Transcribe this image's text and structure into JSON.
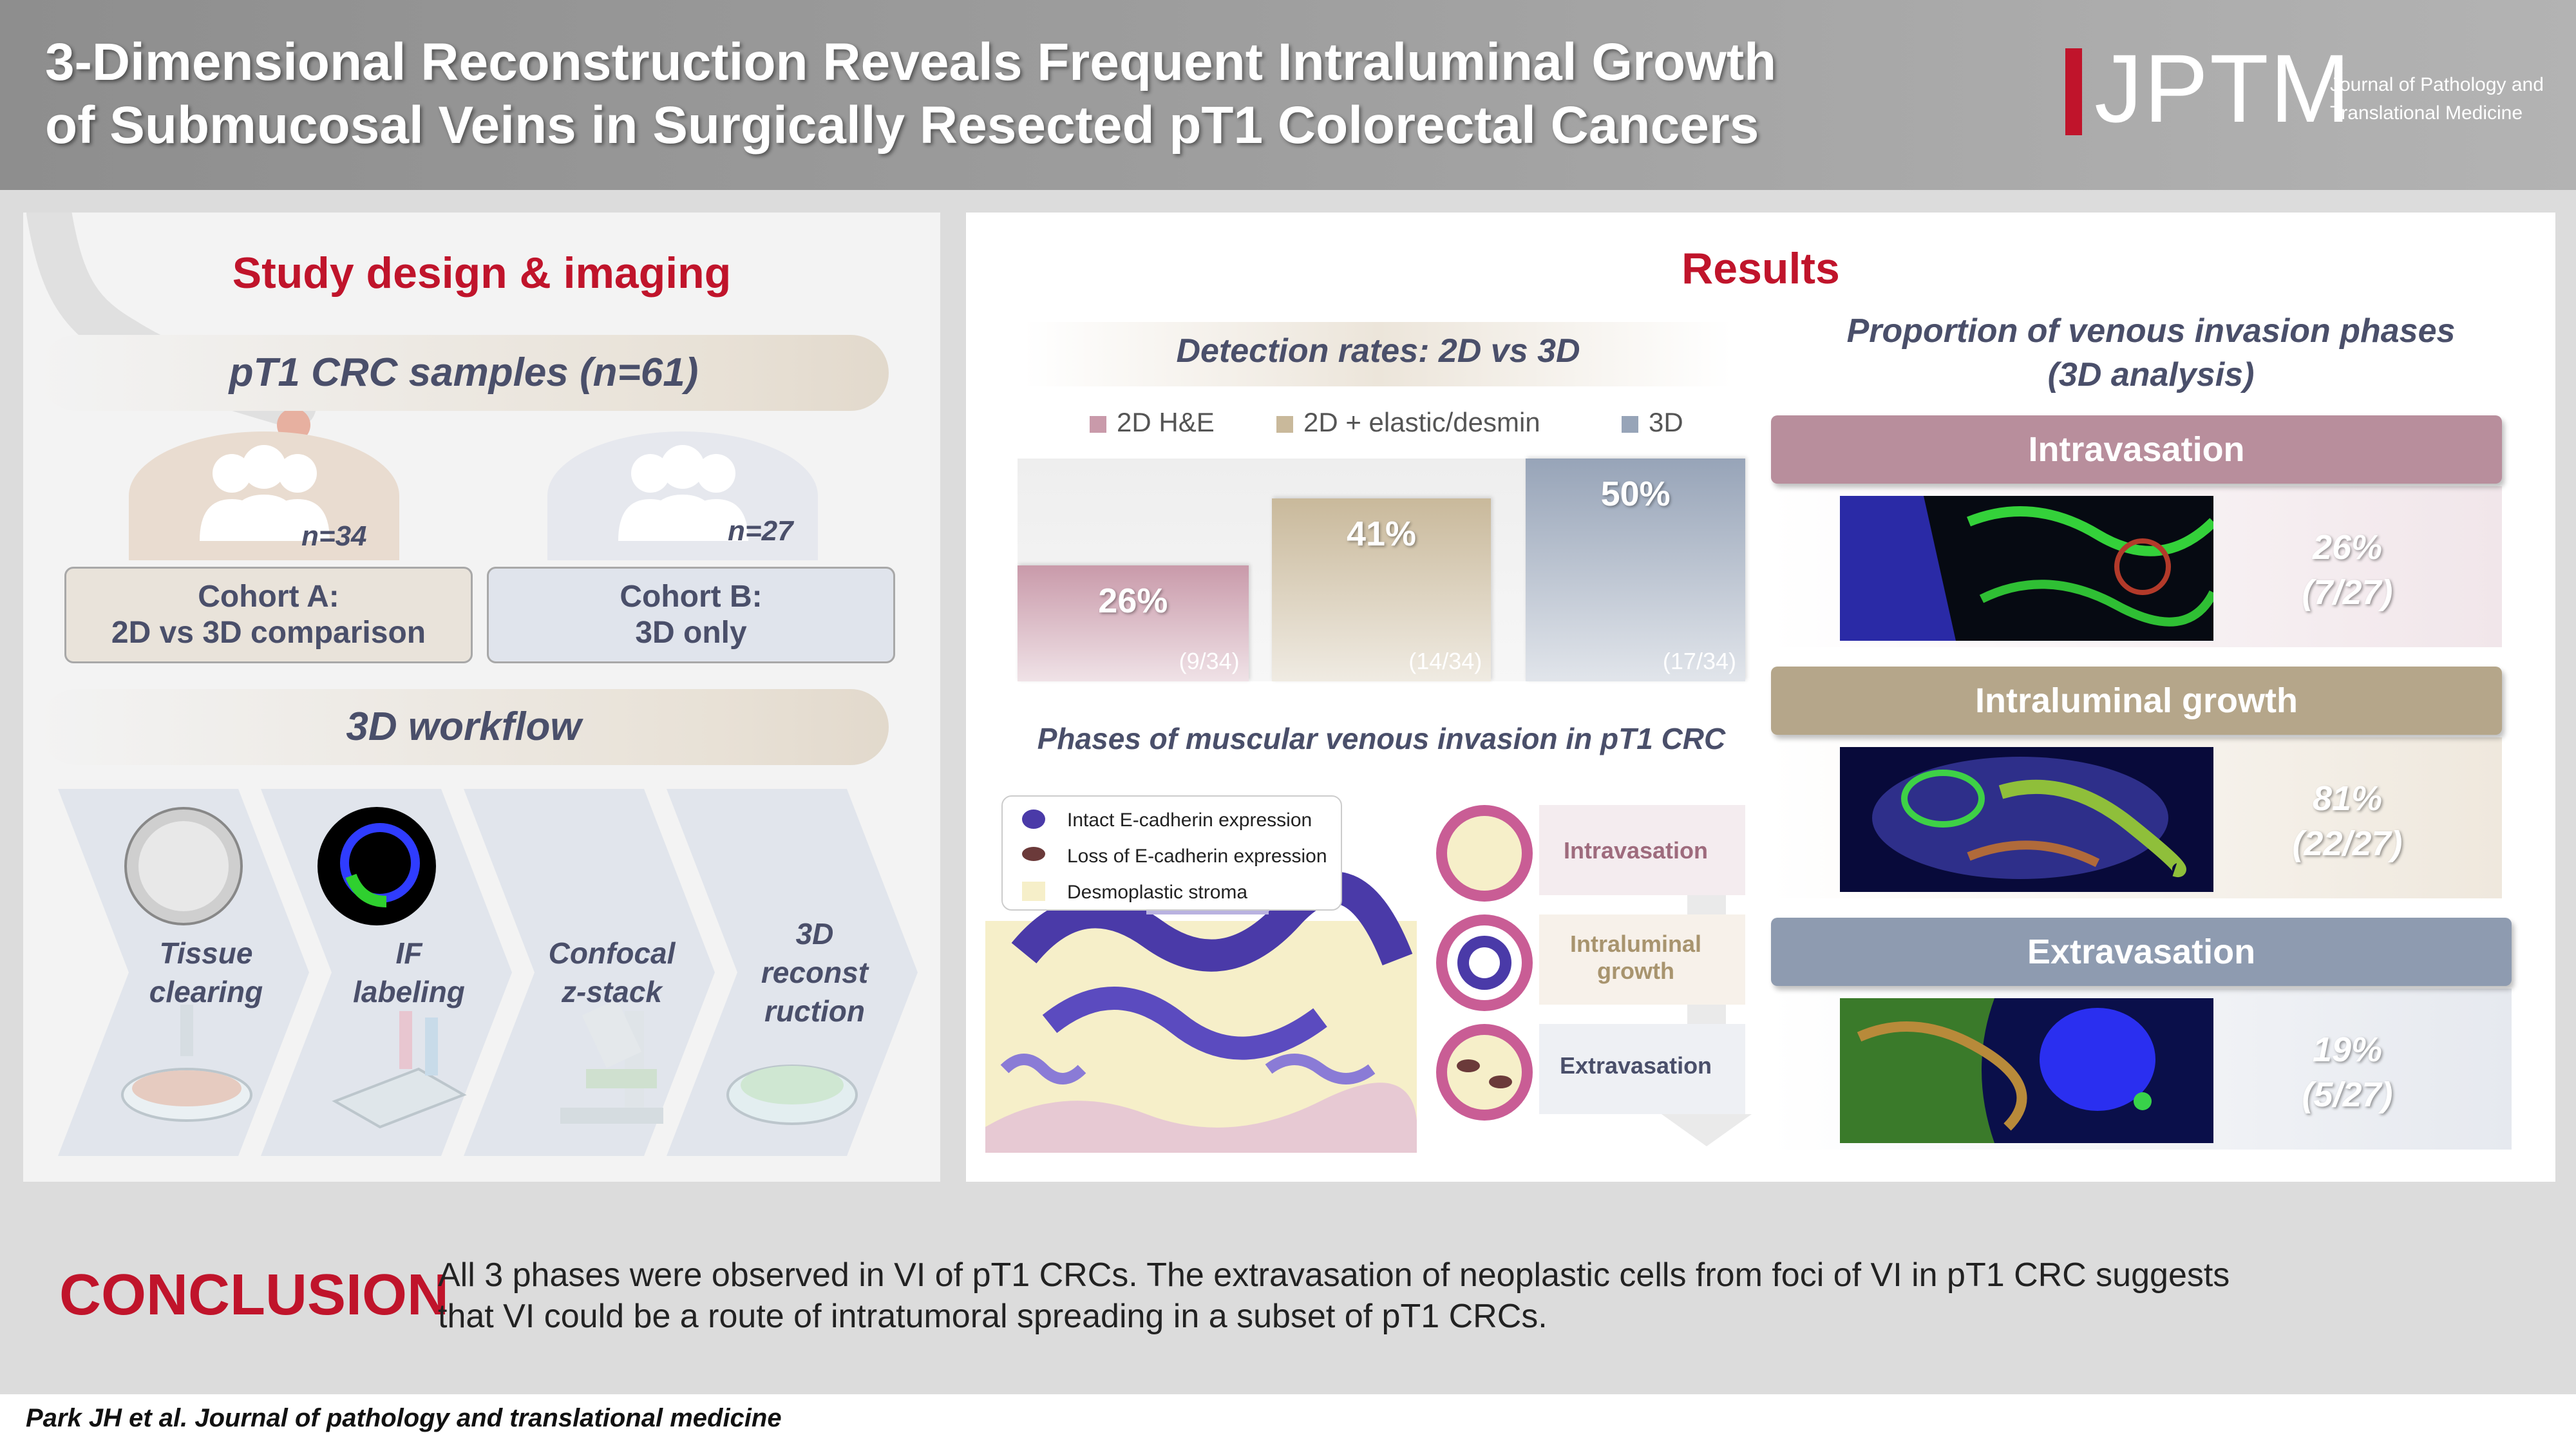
{
  "header": {
    "title_line1": "3-Dimensional Reconstruction Reveals Frequent Intraluminal Growth",
    "title_line2": "of Submucosal Veins in Surgically Resected pT1 Colorectal Cancers",
    "logo_text": "JPTM",
    "logo_sub_line1": "Journal of Pathology and",
    "logo_sub_line2": "Translational Medicine"
  },
  "study": {
    "title": "Study design & imaging",
    "samples_label": "pT1 CRC samples (n=61)",
    "cohort_a": {
      "count": "n=34",
      "line1": "Cohort A:",
      "line2": "2D vs 3D comparison"
    },
    "cohort_b": {
      "count": "n=27",
      "line1": "Cohort B:",
      "line2": "3D only"
    },
    "workflow_label": "3D workflow",
    "workflow_steps": [
      {
        "line1": "Tissue",
        "line2": "clearing",
        "line3": ""
      },
      {
        "line1": "IF",
        "line2": "labeling",
        "line3": ""
      },
      {
        "line1": "Confocal",
        "line2": "z-stack",
        "line3": ""
      },
      {
        "line1": "3D",
        "line2": "reconst",
        "line3": "ruction"
      }
    ]
  },
  "results": {
    "title": "Results",
    "detection_title": "Detection rates: 2D vs 3D",
    "phases_title": "Phases of muscular venous invasion in pT1 CRC",
    "phase_legend": [
      "Intact E-cadherin expression",
      "Loss of E-cadherin expression",
      "Desmoplastic stroma"
    ],
    "phase_labels": [
      {
        "line1": "Intravasation",
        "line2": ""
      },
      {
        "line1": "Intraluminal",
        "line2": "growth"
      },
      {
        "line1": "Extravasation",
        "line2": ""
      }
    ],
    "proportion_title_line1": "Proportion of venous invasion phases",
    "proportion_title_line2": "(3D analysis)",
    "proportions": [
      {
        "name": "Intravasation",
        "pct": "26%",
        "frac": "(7/27)",
        "color": "#b88e9c"
      },
      {
        "name": "Intraluminal growth",
        "pct": "81%",
        "frac": "(22/27)",
        "color": "#b5a68a"
      },
      {
        "name": "Extravasation",
        "pct": "19%",
        "frac": "(5/27)",
        "color": "#8e9bb0"
      }
    ]
  },
  "chart_data": {
    "type": "bar",
    "title": "Detection rates: 2D vs 3D",
    "categories": [
      "2D H&E",
      "2D + elastic/desmin",
      "3D"
    ],
    "values": [
      26,
      41,
      50
    ],
    "labels": [
      "26%",
      "41%",
      "50%"
    ],
    "fractions": [
      "(9/34)",
      "(14/34)",
      "(17/34)"
    ],
    "colors": [
      "#c99aaa",
      "#c9b99b",
      "#97a4b8"
    ],
    "ylim": [
      0,
      50
    ],
    "legend_position": "top"
  },
  "conclusion": {
    "label": "CONCLUSION",
    "line1": "All 3 phases were observed in VI of pT1 CRCs. The extravasation of neoplastic cells from foci of VI in pT1 CRC suggests",
    "line2": "that VI could be a route of intratumoral spreading in a subset of pT1 CRCs."
  },
  "footer": {
    "citation": "Park JH et al. Journal of pathology and translational medicine"
  }
}
